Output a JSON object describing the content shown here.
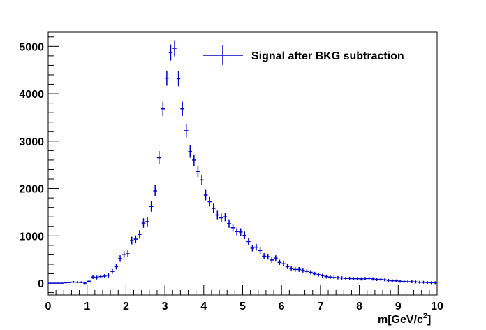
{
  "chart_data": {
    "type": "scatter",
    "xlabel": "m[GeV/c",
    "xlabel_sup": "2",
    "xlabel_close": "]",
    "ylabel": "",
    "xlim": [
      0,
      10
    ],
    "ylim": [
      -250,
      5300
    ],
    "x_ticks": [
      0,
      1,
      2,
      3,
      4,
      5,
      6,
      7,
      8,
      9,
      10
    ],
    "y_ticks": [
      0,
      1000,
      2000,
      3000,
      4000,
      5000
    ],
    "grid": false,
    "legend_position": "top-right",
    "series": [
      {
        "name": "Signal after  BKG subtraction",
        "color": "#0000cc",
        "error_bars": true,
        "x": [
          0.05,
          0.15,
          0.25,
          0.35,
          0.45,
          0.55,
          0.65,
          0.75,
          0.85,
          0.95,
          1.05,
          1.15,
          1.25,
          1.35,
          1.45,
          1.55,
          1.65,
          1.75,
          1.85,
          1.95,
          2.05,
          2.15,
          2.25,
          2.35,
          2.45,
          2.55,
          2.65,
          2.75,
          2.85,
          2.95,
          3.05,
          3.15,
          3.25,
          3.35,
          3.45,
          3.55,
          3.65,
          3.75,
          3.85,
          3.95,
          4.05,
          4.15,
          4.25,
          4.35,
          4.45,
          4.55,
          4.65,
          4.75,
          4.85,
          4.95,
          5.05,
          5.15,
          5.25,
          5.35,
          5.45,
          5.55,
          5.65,
          5.75,
          5.85,
          5.95,
          6.05,
          6.15,
          6.25,
          6.35,
          6.45,
          6.55,
          6.65,
          6.75,
          6.85,
          6.95,
          7.05,
          7.15,
          7.25,
          7.35,
          7.45,
          7.55,
          7.65,
          7.75,
          7.85,
          7.95,
          8.05,
          8.15,
          8.25,
          8.35,
          8.45,
          8.55,
          8.65,
          8.75,
          8.85,
          8.95,
          9.05,
          9.15,
          9.25,
          9.35,
          9.45,
          9.55,
          9.65,
          9.75,
          9.85,
          9.95
        ],
        "y": [
          0,
          0,
          0,
          0,
          10,
          15,
          25,
          20,
          20,
          0,
          40,
          130,
          120,
          140,
          150,
          170,
          250,
          350,
          520,
          610,
          620,
          900,
          930,
          1030,
          1270,
          1300,
          1620,
          1950,
          2650,
          3680,
          4330,
          4870,
          4960,
          4320,
          3680,
          3220,
          2780,
          2600,
          2360,
          2180,
          1860,
          1720,
          1580,
          1440,
          1380,
          1400,
          1260,
          1170,
          1090,
          1080,
          1010,
          880,
          740,
          760,
          690,
          570,
          560,
          490,
          530,
          440,
          410,
          350,
          310,
          290,
          290,
          270,
          250,
          230,
          200,
          180,
          160,
          140,
          130,
          120,
          115,
          110,
          100,
          100,
          95,
          95,
          90,
          95,
          100,
          90,
          80,
          80,
          70,
          60,
          50,
          50,
          40,
          35,
          30,
          30,
          25,
          20,
          20,
          15,
          10,
          10
        ],
        "errors": [
          10,
          10,
          10,
          10,
          15,
          15,
          20,
          20,
          20,
          20,
          30,
          40,
          40,
          40,
          40,
          50,
          50,
          60,
          70,
          70,
          75,
          80,
          80,
          90,
          100,
          100,
          110,
          120,
          140,
          150,
          160,
          170,
          170,
          160,
          150,
          140,
          130,
          120,
          120,
          110,
          110,
          100,
          100,
          90,
          90,
          90,
          90,
          85,
          80,
          80,
          80,
          75,
          70,
          70,
          70,
          65,
          60,
          60,
          60,
          55,
          55,
          50,
          50,
          50,
          50,
          45,
          45,
          45,
          40,
          40,
          40,
          40,
          40,
          35,
          35,
          35,
          35,
          35,
          35,
          35,
          35,
          35,
          35,
          35,
          35,
          30,
          30,
          30,
          30,
          30,
          30,
          30,
          30,
          30,
          30,
          30,
          30,
          30,
          30,
          30
        ]
      }
    ]
  }
}
